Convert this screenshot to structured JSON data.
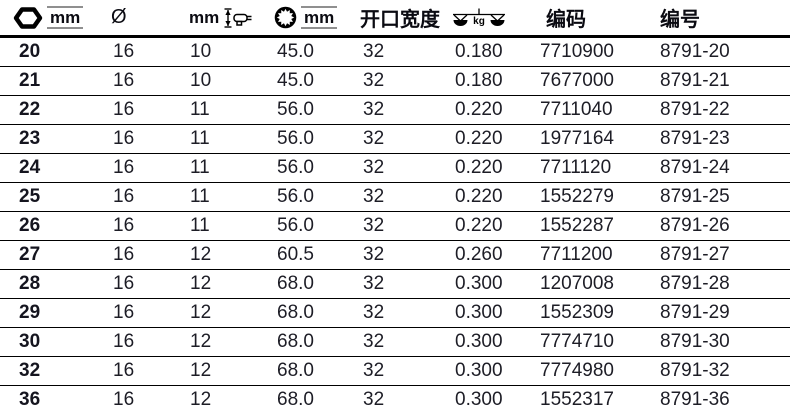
{
  "table": {
    "columns": [
      {
        "id": "size",
        "label": "mm",
        "icon": "hex-socket-icon"
      },
      {
        "id": "diameter",
        "label": "Ø"
      },
      {
        "id": "drive_height",
        "label": "mm",
        "icon": "ratchet-height-icon"
      },
      {
        "id": "ring_diameter",
        "label": "mm",
        "icon": "ring-end-icon"
      },
      {
        "id": "jaw_width",
        "label": "开口宽度"
      },
      {
        "id": "weight",
        "label": "kg",
        "icon": "weight-scale-icon"
      },
      {
        "id": "code",
        "label": "编码"
      },
      {
        "id": "model",
        "label": "编号"
      }
    ],
    "rows": [
      [
        "20",
        "16",
        "10",
        "45.0",
        "32",
        "0.180",
        "7710900",
        "8791-20"
      ],
      [
        "21",
        "16",
        "10",
        "45.0",
        "32",
        "0.180",
        "7677000",
        "8791-21"
      ],
      [
        "22",
        "16",
        "11",
        "56.0",
        "32",
        "0.220",
        "7711040",
        "8791-22"
      ],
      [
        "23",
        "16",
        "11",
        "56.0",
        "32",
        "0.220",
        "1977164",
        "8791-23"
      ],
      [
        "24",
        "16",
        "11",
        "56.0",
        "32",
        "0.220",
        "7711120",
        "8791-24"
      ],
      [
        "25",
        "16",
        "11",
        "56.0",
        "32",
        "0.220",
        "1552279",
        "8791-25"
      ],
      [
        "26",
        "16",
        "11",
        "56.0",
        "32",
        "0.220",
        "1552287",
        "8791-26"
      ],
      [
        "27",
        "16",
        "12",
        "60.5",
        "32",
        "0.260",
        "7711200",
        "8791-27"
      ],
      [
        "28",
        "16",
        "12",
        "68.0",
        "32",
        "0.300",
        "1207008",
        "8791-28"
      ],
      [
        "29",
        "16",
        "12",
        "68.0",
        "32",
        "0.300",
        "1552309",
        "8791-29"
      ],
      [
        "30",
        "16",
        "12",
        "68.0",
        "32",
        "0.300",
        "7774710",
        "8791-30"
      ],
      [
        "32",
        "16",
        "12",
        "68.0",
        "32",
        "0.300",
        "7774980",
        "8791-32"
      ],
      [
        "36",
        "16",
        "12",
        "68.0",
        "32",
        "0.300",
        "1552317",
        "8791-36"
      ]
    ]
  },
  "colors": {
    "text": "#1d1d26",
    "rule": "#000000",
    "mm_rule": "#8f8f8f"
  }
}
